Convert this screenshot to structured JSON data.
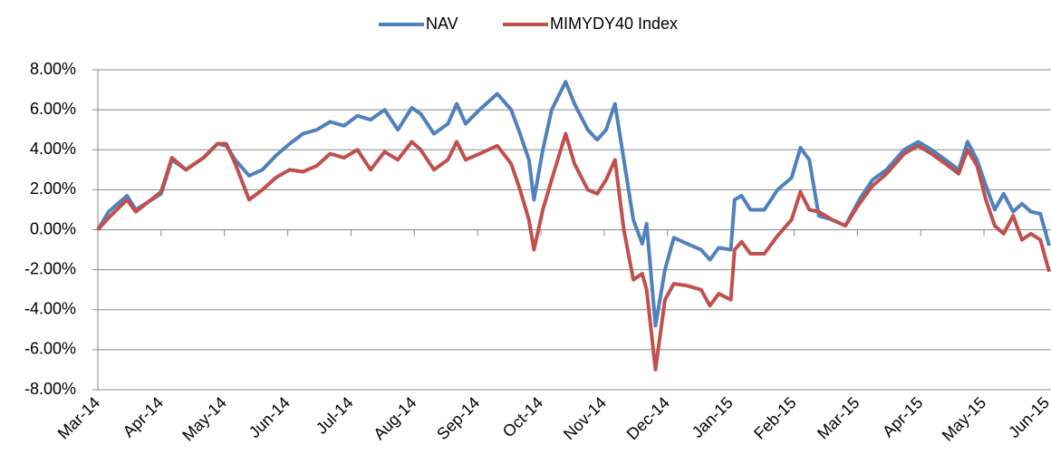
{
  "chart_data": {
    "type": "line",
    "x": [
      0,
      0.17,
      0.46,
      0.6,
      1,
      1.17,
      1.39,
      1.67,
      1.89,
      2.03,
      2.17,
      2.39,
      2.6,
      2.81,
      3.03,
      3.24,
      3.46,
      3.67,
      3.89,
      4.1,
      4.31,
      4.53,
      4.74,
      4.96,
      5.1,
      5.31,
      5.53,
      5.67,
      5.81,
      6.03,
      6.31,
      6.53,
      6.67,
      6.81,
      6.89,
      7.03,
      7.17,
      7.39,
      7.53,
      7.74,
      7.89,
      8.03,
      8.17,
      8.31,
      8.46,
      8.6,
      8.67,
      8.81,
      8.96,
      9.1,
      9.31,
      9.53,
      9.67,
      9.81,
      10,
      10.06,
      10.17,
      10.31,
      10.53,
      10.74,
      10.96,
      11.1,
      11.24,
      11.39,
      11.6,
      11.81,
      12.03,
      12.24,
      12.46,
      12.74,
      12.96,
      13.17,
      13.39,
      13.6,
      13.74,
      13.89,
      14.03,
      14.17,
      14.31,
      14.46,
      14.6,
      14.74,
      14.89,
      15.03
    ],
    "series": [
      {
        "name": "NAV",
        "color": "#4f81bd",
        "values": [
          0,
          0.9,
          1.7,
          1.0,
          1.8,
          3.5,
          3.0,
          3.6,
          4.3,
          4.2,
          3.5,
          2.7,
          3.0,
          3.7,
          4.3,
          4.8,
          5.0,
          5.4,
          5.2,
          5.7,
          5.5,
          6.0,
          5.0,
          6.1,
          5.8,
          4.8,
          5.3,
          6.3,
          5.3,
          6.0,
          6.8,
          6.0,
          4.8,
          3.5,
          1.5,
          4.0,
          6.0,
          7.4,
          6.3,
          5.0,
          4.5,
          5.0,
          6.3,
          3.5,
          0.5,
          -0.7,
          0.3,
          -4.8,
          -2.0,
          -0.4,
          -0.7,
          -1.0,
          -1.5,
          -0.9,
          -1.0,
          1.5,
          1.7,
          1.0,
          1.0,
          2.0,
          2.6,
          4.1,
          3.5,
          0.7,
          0.5,
          0.2,
          1.5,
          2.5,
          3.0,
          4.0,
          4.4,
          4.0,
          3.5,
          3.0,
          4.4,
          3.5,
          2.2,
          1.0,
          1.8,
          0.9,
          1.3,
          0.9,
          0.8,
          -0.8
        ]
      },
      {
        "name": "MIMYDY40 Index",
        "color": "#c0504d",
        "values": [
          0,
          0.6,
          1.5,
          0.9,
          1.9,
          3.6,
          3.0,
          3.6,
          4.3,
          4.3,
          3.3,
          1.5,
          2.0,
          2.6,
          3.0,
          2.9,
          3.2,
          3.8,
          3.6,
          4.0,
          3.0,
          3.9,
          3.5,
          4.4,
          4.0,
          3.0,
          3.5,
          4.4,
          3.5,
          3.8,
          4.2,
          3.3,
          2.0,
          0.5,
          -1.0,
          1.0,
          2.5,
          4.8,
          3.3,
          2.0,
          1.8,
          2.5,
          3.5,
          0,
          -2.5,
          -2.2,
          -3.0,
          -7.0,
          -3.5,
          -2.7,
          -2.8,
          -3.0,
          -3.8,
          -3.2,
          -3.5,
          -1.0,
          -0.6,
          -1.2,
          -1.2,
          -0.3,
          0.5,
          1.9,
          1.0,
          0.9,
          0.5,
          0.2,
          1.3,
          2.2,
          2.8,
          3.8,
          4.2,
          3.8,
          3.3,
          2.8,
          4.0,
          3.2,
          1.5,
          0.2,
          -0.2,
          0.7,
          -0.5,
          -0.2,
          -0.5,
          -2.1
        ]
      }
    ],
    "xlim": [
      0,
      15.03
    ],
    "xticks": [
      {
        "value": 0,
        "label": "Mar-14"
      },
      {
        "value": 1,
        "label": "Apr-14"
      },
      {
        "value": 2,
        "label": "May-14"
      },
      {
        "value": 3,
        "label": "Jun-14"
      },
      {
        "value": 4,
        "label": "Jul-14"
      },
      {
        "value": 5,
        "label": "Aug-14"
      },
      {
        "value": 6,
        "label": "Sep-14"
      },
      {
        "value": 7,
        "label": "Oct-14"
      },
      {
        "value": 8,
        "label": "Nov-14"
      },
      {
        "value": 9,
        "label": "Dec-14"
      },
      {
        "value": 10,
        "label": "Jan-15"
      },
      {
        "value": 11,
        "label": "Feb-15"
      },
      {
        "value": 12,
        "label": "Mar-15"
      },
      {
        "value": 13,
        "label": "Apr-15"
      },
      {
        "value": 14,
        "label": "May-15"
      },
      {
        "value": 15,
        "label": "Jun-15"
      }
    ],
    "ylim": [
      -8,
      8
    ],
    "yticks": [
      {
        "value": -8,
        "label": "-8.00%"
      },
      {
        "value": -6,
        "label": "-6.00%"
      },
      {
        "value": -4,
        "label": "-4.00%"
      },
      {
        "value": -2,
        "label": "-2.00%"
      },
      {
        "value": 0,
        "label": "0.00%"
      },
      {
        "value": 2,
        "label": "2.00%"
      },
      {
        "value": 4,
        "label": "4.00%"
      },
      {
        "value": 6,
        "label": "6.00%"
      },
      {
        "value": 8,
        "label": "8.00%"
      }
    ],
    "grid": true,
    "legend": "top"
  }
}
